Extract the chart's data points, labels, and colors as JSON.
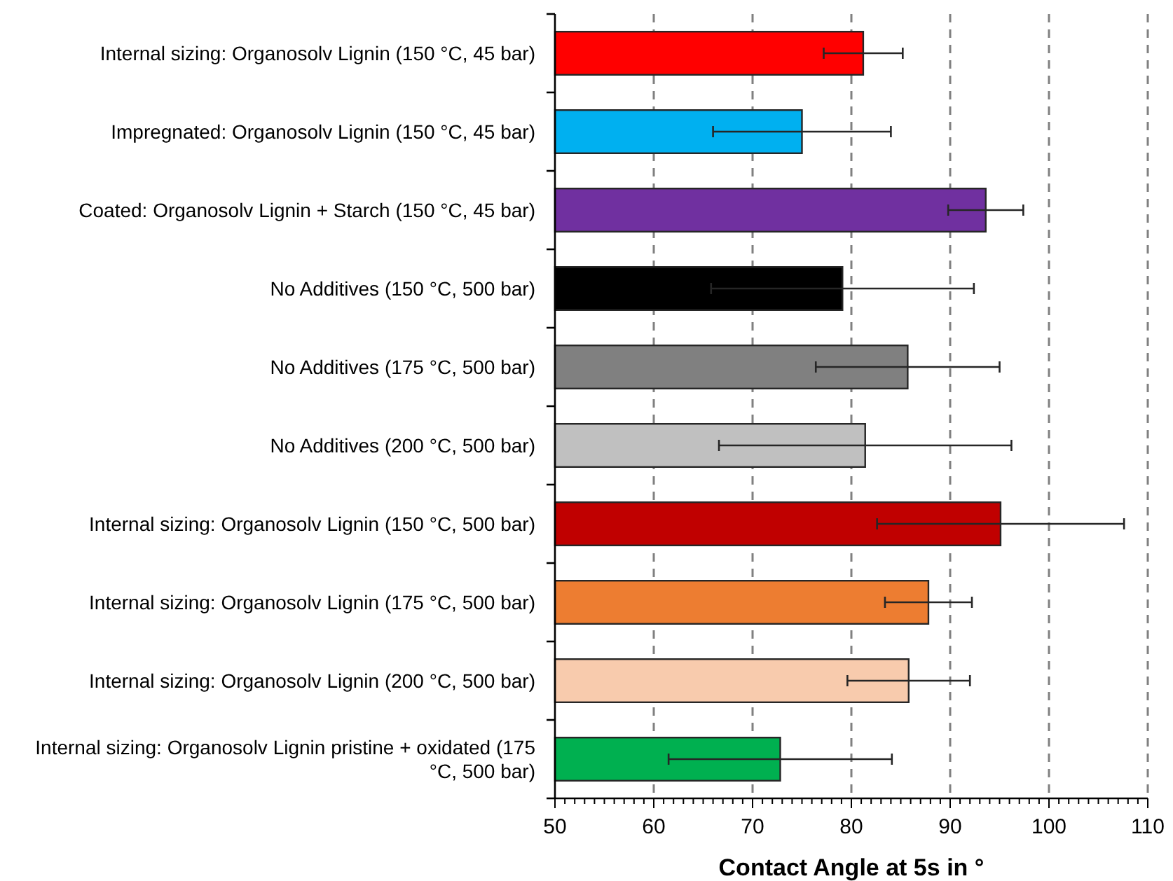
{
  "chart_data": {
    "type": "bar",
    "orientation": "horizontal",
    "xlabel": "Contact Angle at 5s in °",
    "categories": [
      "Internal sizing: Organosolv Lignin (150 °C, 45 bar)",
      "Impregnated: Organosolv Lignin (150 °C, 45 bar)",
      "Coated: Organosolv Lignin + Starch (150 °C, 45 bar)",
      "No Additives (150 °C, 500 bar)",
      "No Additives (175 °C, 500 bar)",
      "No Additives (200 °C, 500 bar)",
      "Internal sizing: Organosolv Lignin (150 °C, 500 bar)",
      "Internal sizing: Organosolv Lignin (175 °C, 500 bar)",
      "Internal sizing: Organosolv Lignin (200 °C, 500 bar)",
      "Internal sizing: Organosolv Lignin pristine + oxidated (175 °C, 500 bar)"
    ],
    "values": [
      81.2,
      75.0,
      93.6,
      79.1,
      85.7,
      81.4,
      95.1,
      87.8,
      85.8,
      72.8
    ],
    "errors": [
      4.0,
      9.0,
      3.8,
      13.3,
      9.3,
      14.8,
      12.5,
      4.4,
      6.2,
      11.3
    ],
    "colors": [
      "#ff0000",
      "#00b0f0",
      "#7030a0",
      "#000000",
      "#808080",
      "#c0c0c0",
      "#c00000",
      "#ed7d31",
      "#f8cbad",
      "#00b050"
    ],
    "xlim": [
      50,
      110
    ],
    "xticks": [
      50,
      {
        "value": 51,
        "label": null
      },
      {
        "value": 52,
        "label": null
      },
      {
        "value": 53,
        "label": null
      },
      {
        "value": 54,
        "label": null
      },
      {
        "value": 55,
        "label": null
      },
      {
        "value": 56,
        "label": null
      },
      {
        "value": 57,
        "label": null
      },
      {
        "value": 58,
        "label": null
      },
      {
        "value": 59,
        "label": null
      },
      60,
      {
        "value": 61,
        "label": null
      },
      {
        "value": 62,
        "label": null
      },
      {
        "value": 63,
        "label": null
      },
      {
        "value": 64,
        "label": null
      },
      {
        "value": 65,
        "label": null
      },
      {
        "value": 66,
        "label": null
      },
      {
        "value": 67,
        "label": null
      },
      {
        "value": 68,
        "label": null
      },
      {
        "value": 69,
        "label": null
      },
      70,
      {
        "value": 71,
        "label": null
      },
      {
        "value": 72,
        "label": null
      },
      {
        "value": 73,
        "label": null
      },
      {
        "value": 74,
        "label": null
      },
      {
        "value": 75,
        "label": null
      },
      {
        "value": 76,
        "label": null
      },
      {
        "value": 77,
        "label": null
      },
      {
        "value": 78,
        "label": null
      },
      {
        "value": 79,
        "label": null
      },
      80,
      {
        "value": 81,
        "label": null
      },
      {
        "value": 82,
        "label": null
      },
      {
        "value": 83,
        "label": null
      },
      {
        "value": 84,
        "label": null
      },
      {
        "value": 85,
        "label": null
      },
      {
        "value": 86,
        "label": null
      },
      {
        "value": 87,
        "label": null
      },
      {
        "value": 88,
        "label": null
      },
      {
        "value": 89,
        "label": null
      },
      90,
      {
        "value": 91,
        "label": null
      },
      {
        "value": 92,
        "label": null
      },
      {
        "value": 93,
        "label": null
      },
      {
        "value": 94,
        "label": null
      },
      {
        "value": 95,
        "label": null
      },
      {
        "value": 96,
        "label": null
      },
      {
        "value": 97,
        "label": null
      },
      {
        "value": 98,
        "label": null
      },
      {
        "value": 99,
        "label": null
      },
      100,
      {
        "value": 101,
        "label": null
      },
      {
        "value": 102,
        "label": null
      },
      {
        "value": 103,
        "label": null
      },
      {
        "value": 104,
        "label": null
      },
      {
        "value": 105,
        "label": null
      },
      {
        "value": 106,
        "label": null
      },
      {
        "value": 107,
        "label": null
      },
      {
        "value": 108,
        "label": null
      },
      {
        "value": 109,
        "label": null
      },
      110
    ],
    "grid": "x"
  }
}
